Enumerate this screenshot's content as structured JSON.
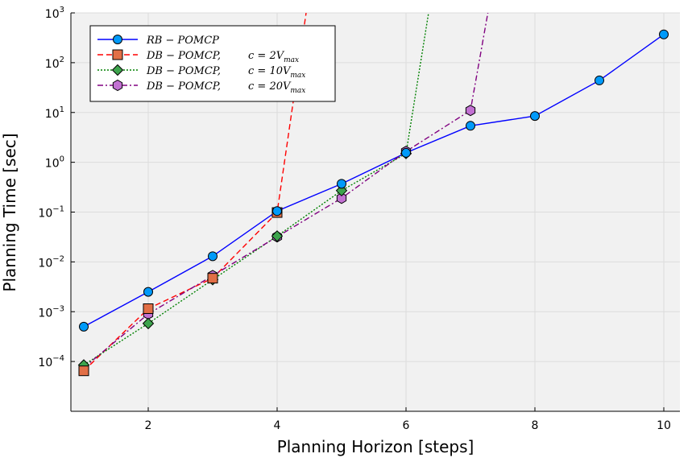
{
  "chart_data": {
    "type": "line",
    "xlabel": "Planning Horizon [steps]",
    "ylabel": "Planning Time [sec]",
    "xscale": "linear",
    "yscale": "log",
    "xlim": [
      0.8,
      10.25
    ],
    "ylim": [
      1e-05,
      1000
    ],
    "grid": true,
    "legend_position": "top-left",
    "x_ticks": [
      {
        "value": 2,
        "label": "2"
      },
      {
        "value": 4,
        "label": "4"
      },
      {
        "value": 6,
        "label": "6"
      },
      {
        "value": 8,
        "label": "8"
      },
      {
        "value": 10,
        "label": "10"
      }
    ],
    "y_ticks": [
      {
        "value": 0.0001,
        "base": "10",
        "exp": "−4"
      },
      {
        "value": 0.001,
        "base": "10",
        "exp": "−3"
      },
      {
        "value": 0.01,
        "base": "10",
        "exp": "−2"
      },
      {
        "value": 0.1,
        "base": "10",
        "exp": "−1"
      },
      {
        "value": 1,
        "base": "10",
        "exp": "0"
      },
      {
        "value": 10,
        "base": "10",
        "exp": "1"
      },
      {
        "value": 100,
        "base": "10",
        "exp": "2"
      },
      {
        "value": 1000,
        "base": "10",
        "exp": "3"
      }
    ],
    "series": [
      {
        "name": "RB − POMCP",
        "legend_main": "RB − POMCP",
        "legend_cond": "",
        "legend_sub": "",
        "color": "#0000ff",
        "marker_color": "#009AFA",
        "marker": "circle",
        "dash": "",
        "x": [
          1,
          2,
          3,
          4,
          5,
          6,
          7,
          8,
          9,
          10
        ],
        "values": [
          0.0005,
          0.0025,
          0.013,
          0.105,
          0.37,
          1.55,
          5.4,
          8.5,
          44,
          370
        ]
      },
      {
        "name": "DB − POMCP, c = 2V_max",
        "legend_main": "DB − POMCP,",
        "legend_cond": "c = 2V",
        "legend_sub": "max",
        "color": "#ff0000",
        "marker_color": "#E26F46",
        "marker": "square",
        "dash": "7,4",
        "x": [
          1,
          2,
          3,
          4,
          4.45
        ],
        "values": [
          6.5e-05,
          0.00115,
          0.0047,
          0.098,
          1000
        ],
        "marker_count": 4
      },
      {
        "name": "DB − POMCP, c = 10V_max",
        "legend_main": "DB − POMCP,",
        "legend_cond": "c = 10V",
        "legend_sub": "max",
        "color": "#008000",
        "marker_color": "#3DA44D",
        "marker": "diamond",
        "dash": "2,2",
        "x": [
          1,
          2,
          3,
          4,
          5,
          6,
          6.35
        ],
        "values": [
          8.5e-05,
          0.00058,
          0.0044,
          0.033,
          0.27,
          1.5,
          1000
        ],
        "marker_count": 6
      },
      {
        "name": "DB − POMCP, c = 20V_max",
        "legend_main": "DB − POMCP,",
        "legend_cond": "c = 20V",
        "legend_sub": "max",
        "color": "#800080",
        "marker_color": "#C271D2",
        "marker": "hexagon",
        "dash": "7,3,2,3",
        "x": [
          1,
          2,
          3,
          4,
          5,
          6,
          7,
          7.27
        ],
        "values": [
          7.5e-05,
          0.0009,
          0.0053,
          0.032,
          0.19,
          1.65,
          11,
          1000
        ],
        "marker_count": 7
      }
    ]
  }
}
